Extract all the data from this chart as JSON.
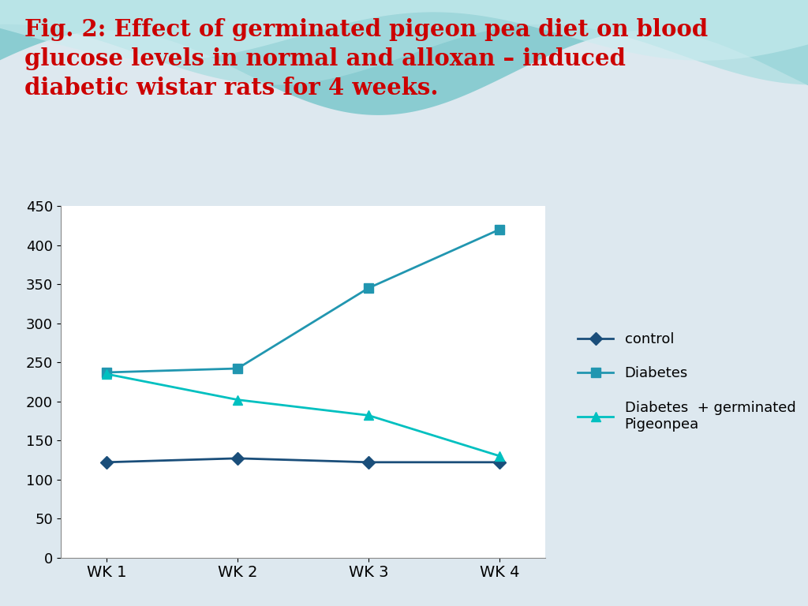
{
  "title_line1": "Fig. 2: Effect of germinated pigeon pea diet on blood",
  "title_line2": "glucose levels in normal and alloxan – induced",
  "title_line3": "diabetic wistar rats for 4 weeks.",
  "title_color": "#cc0000",
  "title_fontsize": 21,
  "background_color": "#dde8ef",
  "plot_background": "#ffffff",
  "x_labels": [
    "WK 1",
    "WK 2",
    "WK 3",
    "WK 4"
  ],
  "x_values": [
    1,
    2,
    3,
    4
  ],
  "series": [
    {
      "label": "control",
      "values": [
        122,
        127,
        122,
        122
      ],
      "color": "#1a4e7a",
      "marker": "D",
      "markersize": 8,
      "linewidth": 2.0
    },
    {
      "label": "Diabetes",
      "values": [
        237,
        242,
        345,
        420
      ],
      "color": "#2196b0",
      "marker": "s",
      "markersize": 8,
      "linewidth": 2.0
    },
    {
      "label": "Diabetes  + germinated\nPigeonpea",
      "values": [
        235,
        202,
        182,
        130
      ],
      "color": "#00c0c0",
      "marker": "^",
      "markersize": 9,
      "linewidth": 2.0
    }
  ],
  "ylim": [
    0,
    450
  ],
  "yticks": [
    0,
    50,
    100,
    150,
    200,
    250,
    300,
    350,
    400,
    450
  ],
  "tick_fontsize": 13,
  "xlabel_fontsize": 14,
  "legend_fontsize": 13
}
